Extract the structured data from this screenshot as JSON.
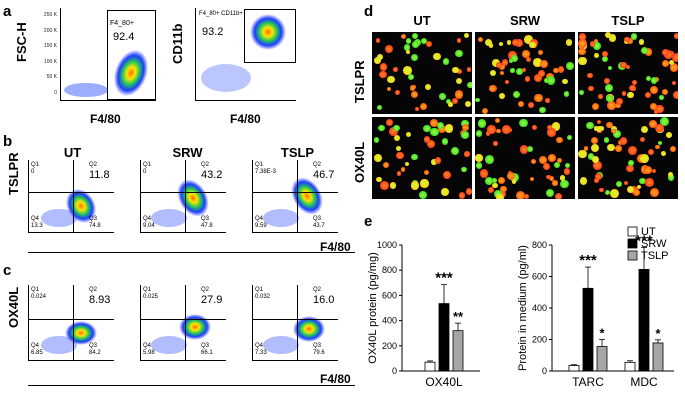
{
  "panels": {
    "a": {
      "label": "a",
      "plot1": {
        "ylabel": "FSC-H",
        "xlabel": "F4/80",
        "gate_name": "F4_80+",
        "gate_value": "92.4",
        "y_ticks": [
          "250 K",
          "200 K",
          "150 K",
          "100 K",
          "50 K",
          "0"
        ],
        "x_ticks": [
          "0",
          "10",
          "10",
          "10",
          "10",
          "10"
        ]
      },
      "plot2": {
        "ylabel": "CD11b",
        "xlabel": "F4/80",
        "gate_name": "F4_80+ CD11b+",
        "gate_value": "93.2"
      }
    },
    "b": {
      "label": "b",
      "ylabel": "TSLPR",
      "xlabel": "F4/80",
      "columns": [
        {
          "title": "UT",
          "q1": "0",
          "q2": "11.8",
          "q3": "74.8",
          "q4": "13.3"
        },
        {
          "title": "SRW",
          "q1": "0",
          "q2": "43.2",
          "q3": "47.8",
          "q4": "9.04"
        },
        {
          "title": "TSLP",
          "q1": "7.38E-3",
          "q2": "46.7",
          "q3": "43.7",
          "q4": "9.59"
        }
      ]
    },
    "c": {
      "label": "c",
      "ylabel": "OX40L",
      "xlabel": "F4/80",
      "columns": [
        {
          "q1": "0.024",
          "q2": "8.93",
          "q3": "84.2",
          "q4": "6.85"
        },
        {
          "q1": "0.025",
          "q2": "27.9",
          "q3": "66.1",
          "q4": "5.98"
        },
        {
          "q1": "0.032",
          "q2": "16.0",
          "q3": "79.6",
          "q4": "7.33"
        }
      ]
    },
    "d": {
      "label": "d",
      "columns": [
        "UT",
        "SRW",
        "TSLP"
      ],
      "rows": [
        "TSLPR",
        "OX40L"
      ]
    },
    "e": {
      "label": "e"
    }
  },
  "quadrant_labels": {
    "q1": "Q1",
    "q2": "Q2",
    "q3": "Q3",
    "q4": "Q4"
  },
  "colors": {
    "ut": "#ffffff",
    "srw": "#000000",
    "tslp": "#a6a6a6"
  },
  "chart_data": [
    {
      "type": "bar",
      "ylabel": "OX40L protein (pg/mg)",
      "categories": [
        "OX40L"
      ],
      "ylim": [
        0,
        1000
      ],
      "yticks": [
        "0",
        "200",
        "400",
        "600",
        "800",
        "1000"
      ],
      "series": [
        {
          "name": "UT",
          "values": [
            70
          ],
          "errors": [
            10
          ]
        },
        {
          "name": "SRW",
          "values": [
            535
          ],
          "errors": [
            150
          ]
        },
        {
          "name": "TSLP",
          "values": [
            320
          ],
          "errors": [
            60
          ]
        }
      ],
      "annotations": [
        {
          "series": "SRW",
          "category": "OX40L",
          "text": "***"
        },
        {
          "series": "TSLP",
          "category": "OX40L",
          "text": "**"
        }
      ]
    },
    {
      "type": "bar",
      "ylabel": "Protein in medium (pg/ml)",
      "categories": [
        "TARC",
        "MDC"
      ],
      "ylim": [
        0,
        800
      ],
      "yticks": [
        "0",
        "200",
        "400",
        "600",
        "800"
      ],
      "legend": [
        "UT",
        "SRW",
        "TSLP"
      ],
      "series": [
        {
          "name": "UT",
          "values": [
            35,
            55
          ],
          "errors": [
            5,
            10
          ]
        },
        {
          "name": "SRW",
          "values": [
            525,
            645
          ],
          "errors": [
            135,
            140
          ]
        },
        {
          "name": "TSLP",
          "values": [
            155,
            178
          ],
          "errors": [
            45,
            20
          ]
        }
      ],
      "annotations": [
        {
          "series": "SRW",
          "category": "TARC",
          "text": "***"
        },
        {
          "series": "TSLP",
          "category": "TARC",
          "text": "*"
        },
        {
          "series": "SRW",
          "category": "MDC",
          "text": "***"
        },
        {
          "series": "TSLP",
          "category": "MDC",
          "text": "*"
        }
      ]
    }
  ]
}
